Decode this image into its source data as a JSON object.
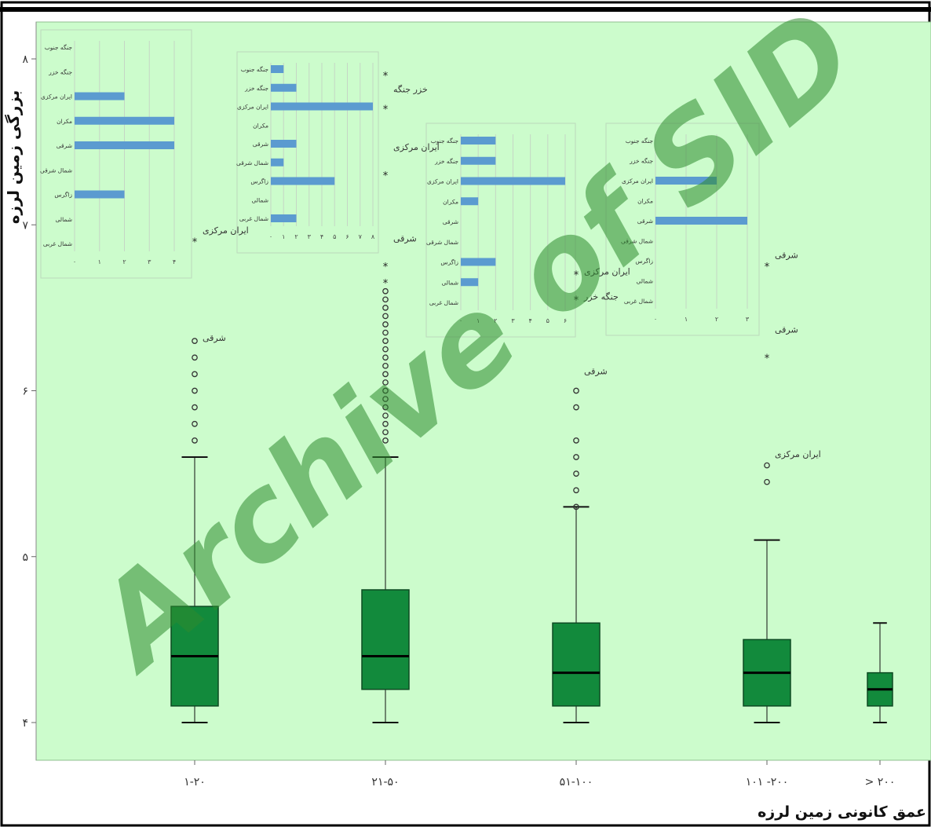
{
  "colors": {
    "plot_bg": "#ccfccc",
    "box_fill": "#128a3c",
    "box_stroke": "#0d4a22",
    "inset_bar": "#5b9bd0",
    "watermark": "#2e8b2e"
  },
  "watermark": "Archive of SID",
  "chart_data": [
    {
      "type": "box",
      "xlabel": "عمق کانونی زمین لرزه",
      "ylabel": "بزرگی زمین لرزه",
      "ylim": [
        3.95,
        8.1
      ],
      "yticks": [
        4,
        5,
        6,
        7,
        8
      ],
      "ytick_labels": [
        "۴",
        "۵",
        "۶",
        "۷",
        "۸"
      ],
      "categories": [
        "۱-۲۰",
        "۲۱-۵۰",
        "۵۱-۱۰۰",
        "۱۰۱ -۲۰۰",
        "> ۲۰۰"
      ],
      "boxes": [
        {
          "category": "۱-۲۰",
          "whisker_low": 4.0,
          "q1": 4.1,
          "median": 4.4,
          "q3": 4.7,
          "whisker_high": 5.6
        },
        {
          "category": "۲۱-۵۰",
          "whisker_low": 4.0,
          "q1": 4.2,
          "median": 4.4,
          "q3": 4.8,
          "whisker_high": 5.6
        },
        {
          "category": "۵۱-۱۰۰",
          "whisker_low": 4.0,
          "q1": 4.1,
          "median": 4.3,
          "q3": 4.6,
          "whisker_high": 5.3
        },
        {
          "category": "۱۰۱ -۲۰۰",
          "whisker_low": 4.0,
          "q1": 4.1,
          "median": 4.3,
          "q3": 4.5,
          "whisker_high": 5.1
        },
        {
          "category": "> ۲۰۰",
          "whisker_low": 4.0,
          "q1": 4.1,
          "median": 4.2,
          "q3": 4.3,
          "whisker_high": 4.6
        }
      ],
      "outliers": [
        {
          "category": "۱-۲۰",
          "marker": "circle",
          "values": [
            5.7,
            5.8,
            5.9,
            6.0,
            6.1,
            6.2,
            6.3
          ]
        },
        {
          "category": "۲۱-۵۰",
          "marker": "circle",
          "values": [
            5.7,
            5.75,
            5.8,
            5.85,
            5.9,
            5.95,
            6.0,
            6.05,
            6.1,
            6.15,
            6.2,
            6.25,
            6.3,
            6.35,
            6.4,
            6.45,
            6.5,
            6.55,
            6.6
          ]
        },
        {
          "category": "۲۱-۵۰",
          "marker": "star",
          "values": [
            6.65,
            6.75,
            7.3,
            7.7,
            7.9
          ]
        },
        {
          "category": "۵۱-۱۰۰",
          "marker": "circle",
          "values": [
            5.3,
            5.4,
            5.5,
            5.6,
            5.7,
            5.9,
            6.0
          ]
        },
        {
          "category": "۵۱-۱۰۰",
          "marker": "star",
          "values": [
            6.7,
            6.55
          ]
        },
        {
          "category": "۱۰۱ -۲۰۰",
          "marker": "circle",
          "values": [
            5.45,
            5.55
          ]
        },
        {
          "category": "۱۰۱ -۲۰۰",
          "marker": "star",
          "values": [
            6.2,
            6.75
          ]
        },
        {
          "category": "۱-۲۰",
          "marker": "star",
          "values": [
            6.9
          ]
        }
      ],
      "annotations": [
        {
          "category": "۱-۲۰",
          "text": "شرقی",
          "y": 6.3
        },
        {
          "category": "۱-۲۰",
          "text": "ایران مرکزی",
          "y": 6.95
        },
        {
          "category": "۲۱-۵۰",
          "text": "خزر جنگه",
          "y": 7.8
        },
        {
          "category": "۲۱-۵۰",
          "text": "ایران مرکزی",
          "y": 7.45
        },
        {
          "category": "۲۱-۵۰",
          "text": "شرقی",
          "y": 6.9
        },
        {
          "category": "۵۱-۱۰۰",
          "text": "ایران مرکزی",
          "y": 6.7
        },
        {
          "category": "۵۱-۱۰۰",
          "text": "جنگه خزر",
          "y": 6.55
        },
        {
          "category": "۵۱-۱۰۰",
          "text": "شرقی",
          "y": 6.1
        },
        {
          "category": "۱۰۱ -۲۰۰",
          "text": "شرقی",
          "y": 6.8
        },
        {
          "category": "۱۰۱ -۲۰۰",
          "text": "شرقی",
          "y": 6.35
        },
        {
          "category": "۱۰۱ -۲۰۰",
          "text": "ایران مرکزی",
          "y": 5.6
        }
      ]
    },
    {
      "type": "bar",
      "orientation": "horizontal",
      "categories": [
        "جنگه جنوب",
        "جنگه خزر",
        "ایران مرکزی",
        "مکران",
        "شرقی",
        "شمال شرقی",
        "زاگرس",
        "شمالی",
        "شمال غربی"
      ],
      "values": [
        0,
        0,
        2,
        4,
        4,
        0,
        2,
        0,
        0
      ],
      "xticks": [
        "۰",
        "۱",
        "۲",
        "۳",
        "۴"
      ]
    },
    {
      "type": "bar",
      "orientation": "horizontal",
      "categories": [
        "جنگه جنوب",
        "جنگه خزر",
        "ایران مرکزی",
        "مکران",
        "شرقی",
        "شمال شرقی",
        "زاگرس",
        "شمالی",
        "شمال غربی"
      ],
      "values": [
        1,
        2,
        8,
        0,
        2,
        1,
        5,
        0,
        2
      ],
      "xticks": [
        "۰",
        "۱",
        "۲",
        "۳",
        "۴",
        "۵",
        "۶",
        "۷",
        "۸"
      ]
    },
    {
      "type": "bar",
      "orientation": "horizontal",
      "categories": [
        "جنگه جنوب",
        "جنگه خزر",
        "ایران مرکزی",
        "مکران",
        "شرقی",
        "شمال شرقی",
        "زاگرس",
        "شمالی",
        "شمال غربی"
      ],
      "values": [
        2,
        2,
        6,
        1,
        0,
        0,
        2,
        1,
        0
      ],
      "xticks": [
        "۰",
        "۱",
        "۲",
        "۳",
        "۴",
        "۵",
        "۶"
      ]
    },
    {
      "type": "bar",
      "orientation": "horizontal",
      "categories": [
        "جنگه جنوب",
        "جنگه خزر",
        "ایران مرکزی",
        "مکران",
        "شرقی",
        "شمال شرقی",
        "زاگرس",
        "شمالی",
        "شمال غربی"
      ],
      "values": [
        0,
        0,
        2,
        0,
        3,
        0,
        0,
        0,
        0
      ],
      "xticks": [
        "۰",
        "۱",
        "۲",
        "۳"
      ]
    }
  ]
}
